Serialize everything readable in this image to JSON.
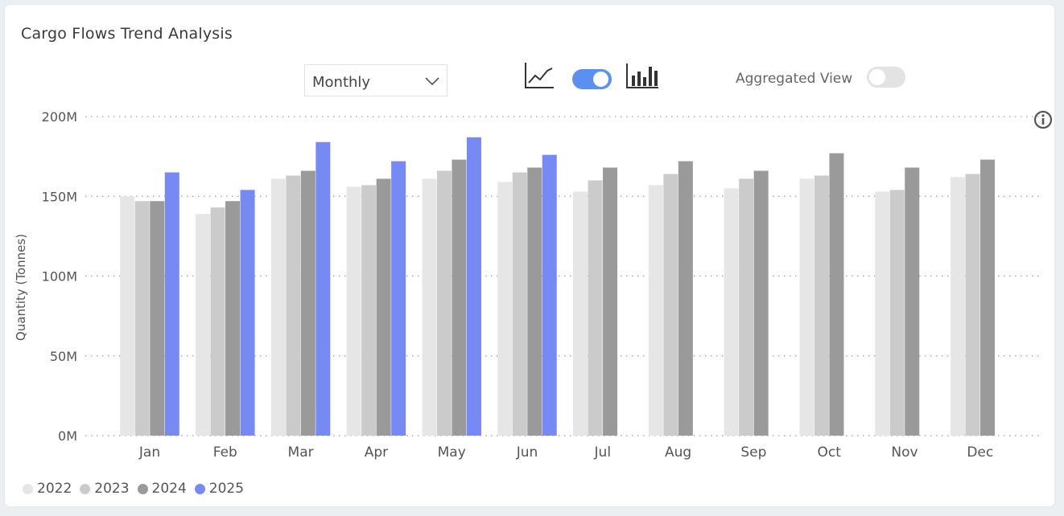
{
  "title": "Cargo Flows Trend Analysis",
  "dropdown": {
    "value": "Monthly"
  },
  "controls": {
    "line_icon": "line-chart-icon",
    "bar_icon": "bar-chart-icon",
    "chart_type_toggle": "on",
    "aggregated_label": "Aggregated View",
    "aggregated_toggle": "off"
  },
  "colors": {
    "2022": "#e6e6e6",
    "2023": "#cbcbcb",
    "2024": "#9a9a9a",
    "2025": "#7789f3",
    "toggle_on": "#5b8ff0"
  },
  "chart_data": {
    "type": "bar",
    "ylabel": "Quantity (Tonnes)",
    "ylim": [
      0,
      200000000
    ],
    "yticks": [
      "0M",
      "50M",
      "100M",
      "150M",
      "200M"
    ],
    "categories": [
      "Jan",
      "Feb",
      "Mar",
      "Apr",
      "May",
      "Jun",
      "Jul",
      "Aug",
      "Sep",
      "Oct",
      "Nov",
      "Dec"
    ],
    "series": [
      {
        "name": "2022",
        "values": [
          150,
          139,
          161,
          156,
          161,
          159,
          153,
          157,
          155,
          161,
          153,
          162
        ]
      },
      {
        "name": "2023",
        "values": [
          147,
          143,
          163,
          157,
          166,
          165,
          160,
          164,
          161,
          163,
          154,
          164
        ]
      },
      {
        "name": "2024",
        "values": [
          147,
          147,
          166,
          161,
          173,
          168,
          168,
          172,
          166,
          177,
          168,
          173
        ]
      },
      {
        "name": "2025",
        "values": [
          165,
          154,
          184,
          172,
          187,
          176,
          null,
          null,
          null,
          null,
          null,
          null
        ]
      }
    ],
    "value_unit": "M",
    "grid": true,
    "legend_position": "bottom-left"
  }
}
